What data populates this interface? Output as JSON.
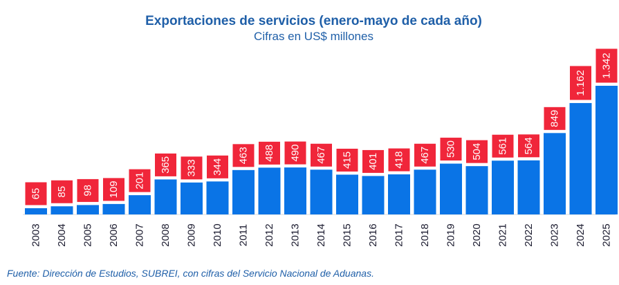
{
  "title": "Exportaciones de servicios (enero-mayo de cada año)",
  "subtitle": "Cifras en US$ millones",
  "source": "Fuente: Dirección de Estudios, SUBREI, con cifras del Servicio Nacional de Aduanas.",
  "colors": {
    "bar": "#0a74e6",
    "label_bg": "#f0263a",
    "label_text": "#ffffff",
    "title": "#1f5fa8"
  },
  "chart_data": {
    "type": "bar",
    "categories": [
      "2003",
      "2004",
      "2005",
      "2006",
      "2007",
      "2008",
      "2009",
      "2010",
      "2011",
      "2012",
      "2013",
      "2014",
      "2015",
      "2016",
      "2017",
      "2018",
      "2019",
      "2020",
      "2021",
      "2022",
      "2023",
      "2024",
      "2025"
    ],
    "values": [
      65,
      85,
      98,
      109,
      201,
      365,
      333,
      344,
      463,
      488,
      490,
      467,
      415,
      401,
      418,
      467,
      530,
      504,
      561,
      564,
      849,
      1162,
      1342
    ],
    "value_labels": [
      "65",
      "85",
      "98",
      "109",
      "201",
      "365",
      "333",
      "344",
      "463",
      "488",
      "490",
      "467",
      "415",
      "401",
      "418",
      "467",
      "530",
      "504",
      "561",
      "564",
      "849",
      "1.162",
      "1.342"
    ],
    "title": "Exportaciones de servicios (enero-mayo de cada año)",
    "subtitle": "Cifras en US$ millones",
    "xlabel": "",
    "ylabel": "",
    "ylim": [
      0,
      1342
    ],
    "grid": false,
    "legend": "none"
  }
}
